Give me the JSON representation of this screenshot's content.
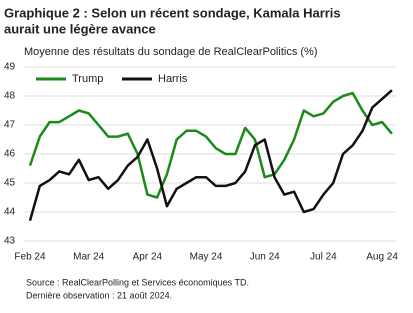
{
  "chart_data": {
    "type": "line",
    "title": [
      "Graphique 2 : Selon un récent sondage, Kamala Harris",
      "aurait une légère avance"
    ],
    "subtitle": "Moyenne des résultats du sondage de RealClearPolitics (%)",
    "source": [
      "Source : RealClearPolling et Services économiques TD.",
      "Dernière observation : 21 août 2024."
    ],
    "categories": [
      "Feb 24",
      null,
      null,
      null,
      null,
      null,
      "Mar 24",
      null,
      null,
      null,
      null,
      null,
      "Apr 24",
      null,
      null,
      null,
      null,
      null,
      "May 24",
      null,
      null,
      null,
      null,
      null,
      "Jun 24",
      null,
      null,
      null,
      null,
      null,
      "Jul 24",
      null,
      null,
      null,
      null,
      null,
      "Aug 24",
      null
    ],
    "series": [
      {
        "name": "Trump",
        "color": "#1a8a1a",
        "values": [
          45.6,
          46.6,
          47.1,
          47.1,
          47.3,
          47.5,
          47.4,
          47.0,
          46.6,
          46.6,
          46.7,
          46.0,
          44.6,
          44.5,
          45.3,
          46.5,
          46.8,
          46.8,
          46.6,
          46.2,
          46.0,
          46.0,
          46.9,
          46.5,
          45.2,
          45.3,
          45.8,
          46.5,
          47.5,
          47.3,
          47.4,
          47.8,
          48.0,
          48.1,
          47.5,
          47.0,
          47.1,
          46.7
        ]
      },
      {
        "name": "Harris",
        "color": "#111111",
        "values": [
          43.7,
          44.9,
          45.1,
          45.4,
          45.3,
          45.8,
          45.1,
          45.2,
          44.8,
          45.1,
          45.6,
          45.9,
          46.5,
          45.5,
          44.2,
          44.8,
          45.0,
          45.2,
          45.2,
          44.9,
          44.9,
          45.0,
          45.4,
          46.3,
          46.5,
          45.2,
          44.6,
          44.7,
          44.0,
          44.1,
          44.6,
          45.0,
          46.0,
          46.3,
          46.8,
          47.6,
          47.9,
          48.2
        ]
      }
    ],
    "ylim": [
      43,
      49
    ],
    "yticks": [
      43,
      44,
      45,
      46,
      47,
      48,
      49
    ],
    "grid": true
  }
}
